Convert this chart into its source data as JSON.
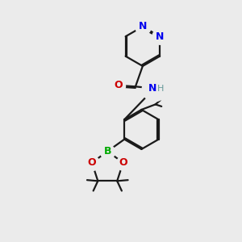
{
  "bg_color": "#ebebeb",
  "bond_color": "#1a1a1a",
  "N_color": "#0000ee",
  "O_color": "#cc0000",
  "B_color": "#00aa00",
  "H_color": "#669999",
  "line_width": 1.6,
  "dgap": 0.055,
  "figsize": [
    3.0,
    3.0
  ],
  "dpi": 100,
  "xlim": [
    0,
    10
  ],
  "ylim": [
    0,
    10
  ]
}
